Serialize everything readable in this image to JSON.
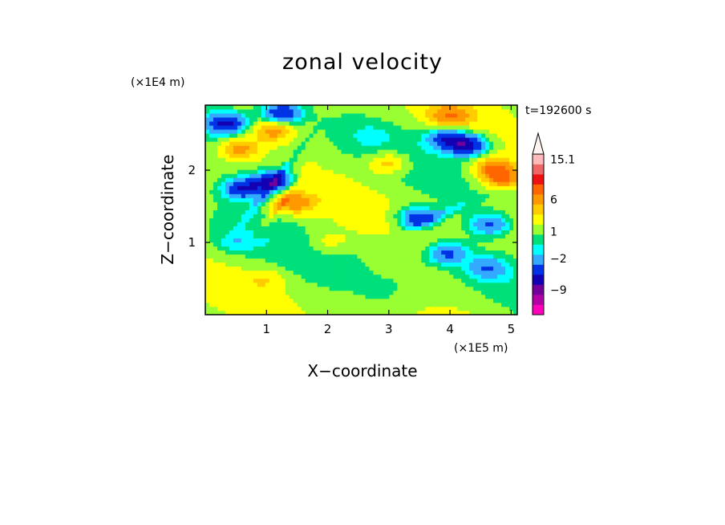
{
  "chart_data": {
    "type": "heatmap",
    "title": "zonal velocity",
    "xlabel": "X−coordinate",
    "ylabel": "Z−coordinate",
    "x_unit": "(×1E5 m)",
    "y_unit": "(×1E4 m)",
    "time_label": "t=192600 s",
    "xlim": [
      0,
      5.1
    ],
    "ylim": [
      0,
      2.9
    ],
    "x_ticks": [
      {
        "value": 1,
        "label": "1"
      },
      {
        "value": 2,
        "label": "2"
      },
      {
        "value": 3,
        "label": "3"
      },
      {
        "value": 4,
        "label": "4"
      },
      {
        "value": 5,
        "label": "5"
      }
    ],
    "y_ticks": [
      {
        "value": 1,
        "label": "1"
      },
      {
        "value": 2,
        "label": "2"
      }
    ],
    "colorbar": {
      "colors": [
        "#ff00bb",
        "#b300a6",
        "#730099",
        "#1400b3",
        "#0033e6",
        "#33aaff",
        "#00ffff",
        "#00e07a",
        "#99ff33",
        "#ffff00",
        "#ffcc00",
        "#ff9900",
        "#ff6600",
        "#ee1111",
        "#ee6666",
        "#ffbbbb"
      ],
      "tick_labels": [
        {
          "label": "15.1",
          "at": 15.1
        },
        {
          "label": "6",
          "at": 6
        },
        {
          "label": "1",
          "at": 1
        },
        {
          "label": "−2",
          "at": -2
        },
        {
          "label": "−9",
          "at": -9
        }
      ],
      "extend": "max",
      "arrow_color": "#fff4f0"
    },
    "field_features": [
      {
        "x": 0.35,
        "z": 2.65,
        "v": -7
      },
      {
        "x": 1.25,
        "z": 2.8,
        "v": -7
      },
      {
        "x": 1.12,
        "z": 1.85,
        "v": -8
      },
      {
        "x": 0.62,
        "z": 1.75,
        "v": -7
      },
      {
        "x": 4.3,
        "z": 2.35,
        "v": -8
      },
      {
        "x": 3.95,
        "z": 2.45,
        "v": -6
      },
      {
        "x": 3.45,
        "z": 1.35,
        "v": -6
      },
      {
        "x": 4.65,
        "z": 1.25,
        "v": -5
      },
      {
        "x": 3.95,
        "z": 0.85,
        "v": -5
      },
      {
        "x": 4.6,
        "z": 0.65,
        "v": -4
      },
      {
        "x": 0.55,
        "z": 2.3,
        "v": 5
      },
      {
        "x": 1.1,
        "z": 2.55,
        "v": 5
      },
      {
        "x": 1.45,
        "z": 1.55,
        "v": 5
      },
      {
        "x": 3.0,
        "z": 2.1,
        "v": 4
      },
      {
        "x": 4.0,
        "z": 2.75,
        "v": 5
      },
      {
        "x": 4.85,
        "z": 1.9,
        "v": 6
      },
      {
        "x": 4.7,
        "z": 2.05,
        "v": 5
      },
      {
        "x": 0.5,
        "z": 1.0,
        "v": -2
      },
      {
        "x": 2.7,
        "z": 2.5,
        "v": -1
      },
      {
        "x": 2.0,
        "z": 1.0,
        "v": 2
      },
      {
        "x": 2.9,
        "z": 0.35,
        "v": -1
      },
      {
        "x": 1.0,
        "z": 0.5,
        "v": 2
      }
    ]
  }
}
